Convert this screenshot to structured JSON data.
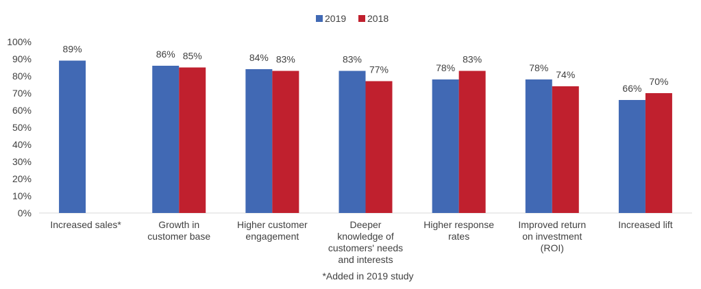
{
  "chart_data": {
    "type": "bar",
    "categories": [
      [
        "Increased sales*"
      ],
      [
        "Growth in",
        "customer base"
      ],
      [
        "Higher customer",
        "engagement"
      ],
      [
        "Deeper",
        "knowledge of",
        "customers' needs",
        "and interests"
      ],
      [
        "Higher response",
        "rates"
      ],
      [
        "Improved return",
        "on investment",
        "(ROI)"
      ],
      [
        "Increased lift"
      ]
    ],
    "series": [
      {
        "name": "2019",
        "color": "#4169b4",
        "values": [
          89,
          86,
          84,
          83,
          78,
          78,
          66
        ],
        "labels": [
          "89%",
          "86%",
          "84%",
          "83%",
          "78%",
          "78%",
          "66%"
        ]
      },
      {
        "name": "2018",
        "color": "#c0202e",
        "values": [
          null,
          85,
          83,
          77,
          83,
          74,
          70
        ],
        "labels": [
          null,
          "85%",
          "83%",
          "77%",
          "83%",
          "74%",
          "70%"
        ]
      }
    ],
    "ylim": [
      0,
      100
    ],
    "yticks": [
      "0%",
      "10%",
      "20%",
      "30%",
      "40%",
      "50%",
      "60%",
      "70%",
      "80%",
      "90%",
      "100%"
    ],
    "grid": false,
    "legend_position": "top-center",
    "footnote": "*Added in 2019 study"
  }
}
